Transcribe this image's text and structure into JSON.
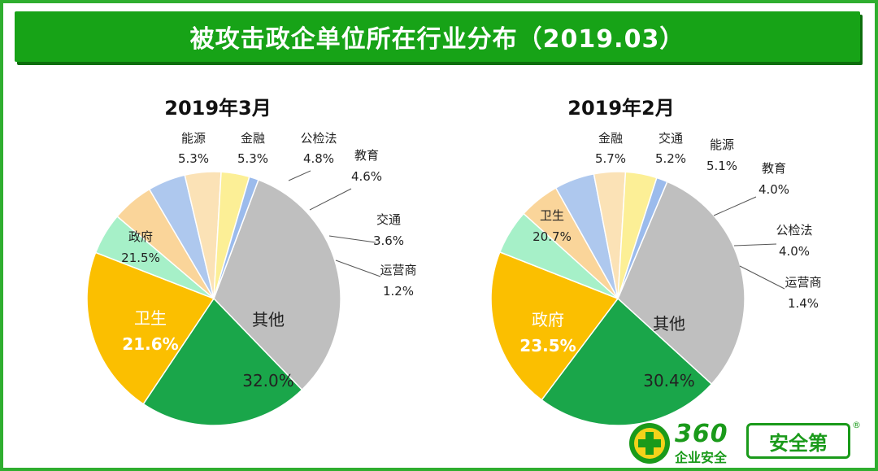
{
  "page": {
    "title": "被攻击政企单位所在行业分布（2019.03）"
  },
  "brand": {
    "number": "360",
    "subtitle": "企业安全",
    "tag": "安全第",
    "reg": "®",
    "logo_icon": "plus-circle-icon",
    "colors": {
      "brand_green": "#1a9a1a"
    }
  },
  "chart_data": [
    {
      "type": "pie",
      "title": "2019年3月",
      "slices": [
        {
          "label": "其他",
          "value": 32.0,
          "value_text": "32.0%",
          "color": "#bfbfbf"
        },
        {
          "label": "卫生",
          "value": 21.6,
          "value_text": "21.6%",
          "color": "#1aa64a"
        },
        {
          "label": "政府",
          "value": 21.5,
          "value_text": "21.5%",
          "color": "#fbbf00"
        },
        {
          "label": "能源",
          "value": 5.3,
          "value_text": "5.3%",
          "color": "#a6f0c8"
        },
        {
          "label": "金融",
          "value": 5.3,
          "value_text": "5.3%",
          "color": "#fad59a"
        },
        {
          "label": "公检法",
          "value": 4.8,
          "value_text": "4.8%",
          "color": "#aec8ee"
        },
        {
          "label": "教育",
          "value": 4.6,
          "value_text": "4.6%",
          "color": "#fbe2b6"
        },
        {
          "label": "交通",
          "value": 3.6,
          "value_text": "3.6%",
          "color": "#fcef96"
        },
        {
          "label": "运营商",
          "value": 1.2,
          "value_text": "1.2%",
          "color": "#9bbbec"
        }
      ]
    },
    {
      "type": "pie",
      "title": "2019年2月",
      "slices": [
        {
          "label": "其他",
          "value": 30.4,
          "value_text": "30.4%",
          "color": "#bfbfbf"
        },
        {
          "label": "政府",
          "value": 23.5,
          "value_text": "23.5%",
          "color": "#1aa64a"
        },
        {
          "label": "卫生",
          "value": 20.7,
          "value_text": "20.7%",
          "color": "#fbbf00"
        },
        {
          "label": "金融",
          "value": 5.7,
          "value_text": "5.7%",
          "color": "#a6f0c8"
        },
        {
          "label": "交通",
          "value": 5.2,
          "value_text": "5.2%",
          "color": "#fad59a"
        },
        {
          "label": "能源",
          "value": 5.1,
          "value_text": "5.1%",
          "color": "#aec8ee"
        },
        {
          "label": "教育",
          "value": 4.0,
          "value_text": "4.0%",
          "color": "#fbe2b6"
        },
        {
          "label": "公检法",
          "value": 4.0,
          "value_text": "4.0%",
          "color": "#fcef96"
        },
        {
          "label": "运营商",
          "value": 1.4,
          "value_text": "1.4%",
          "color": "#9bbbec"
        }
      ]
    }
  ]
}
